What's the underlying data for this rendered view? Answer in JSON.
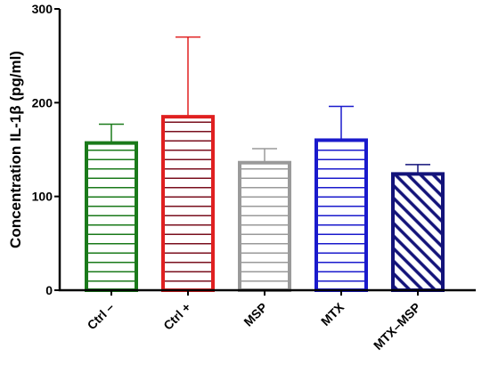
{
  "chart_data": {
    "type": "bar",
    "categories": [
      "Ctrl –",
      "Ctrl +",
      "MSP",
      "MTX",
      "MTX–MSP"
    ],
    "values": [
      157,
      185,
      136,
      160,
      124
    ],
    "error_upper": [
      177,
      270,
      151,
      196,
      134
    ],
    "ylabel": "Concentration IL-1β (pg/ml)",
    "xlabel": "",
    "ylim": [
      0,
      300
    ],
    "yticks": [
      0,
      100,
      200,
      300
    ],
    "grid": false,
    "bars": [
      {
        "stroke": "#1a7a1a",
        "hatch": "#1a7a1a",
        "pattern": "horizontal"
      },
      {
        "stroke": "#e02020",
        "hatch": "#7a0f1e",
        "pattern": "horizontal"
      },
      {
        "stroke": "#9a9a9a",
        "hatch": "#9a9a9a",
        "pattern": "horizontal"
      },
      {
        "stroke": "#1a1acc",
        "hatch": "#1a1acc",
        "pattern": "horizontal"
      },
      {
        "stroke": "#13137a",
        "hatch": "#13137a",
        "pattern": "diagonal"
      }
    ]
  }
}
